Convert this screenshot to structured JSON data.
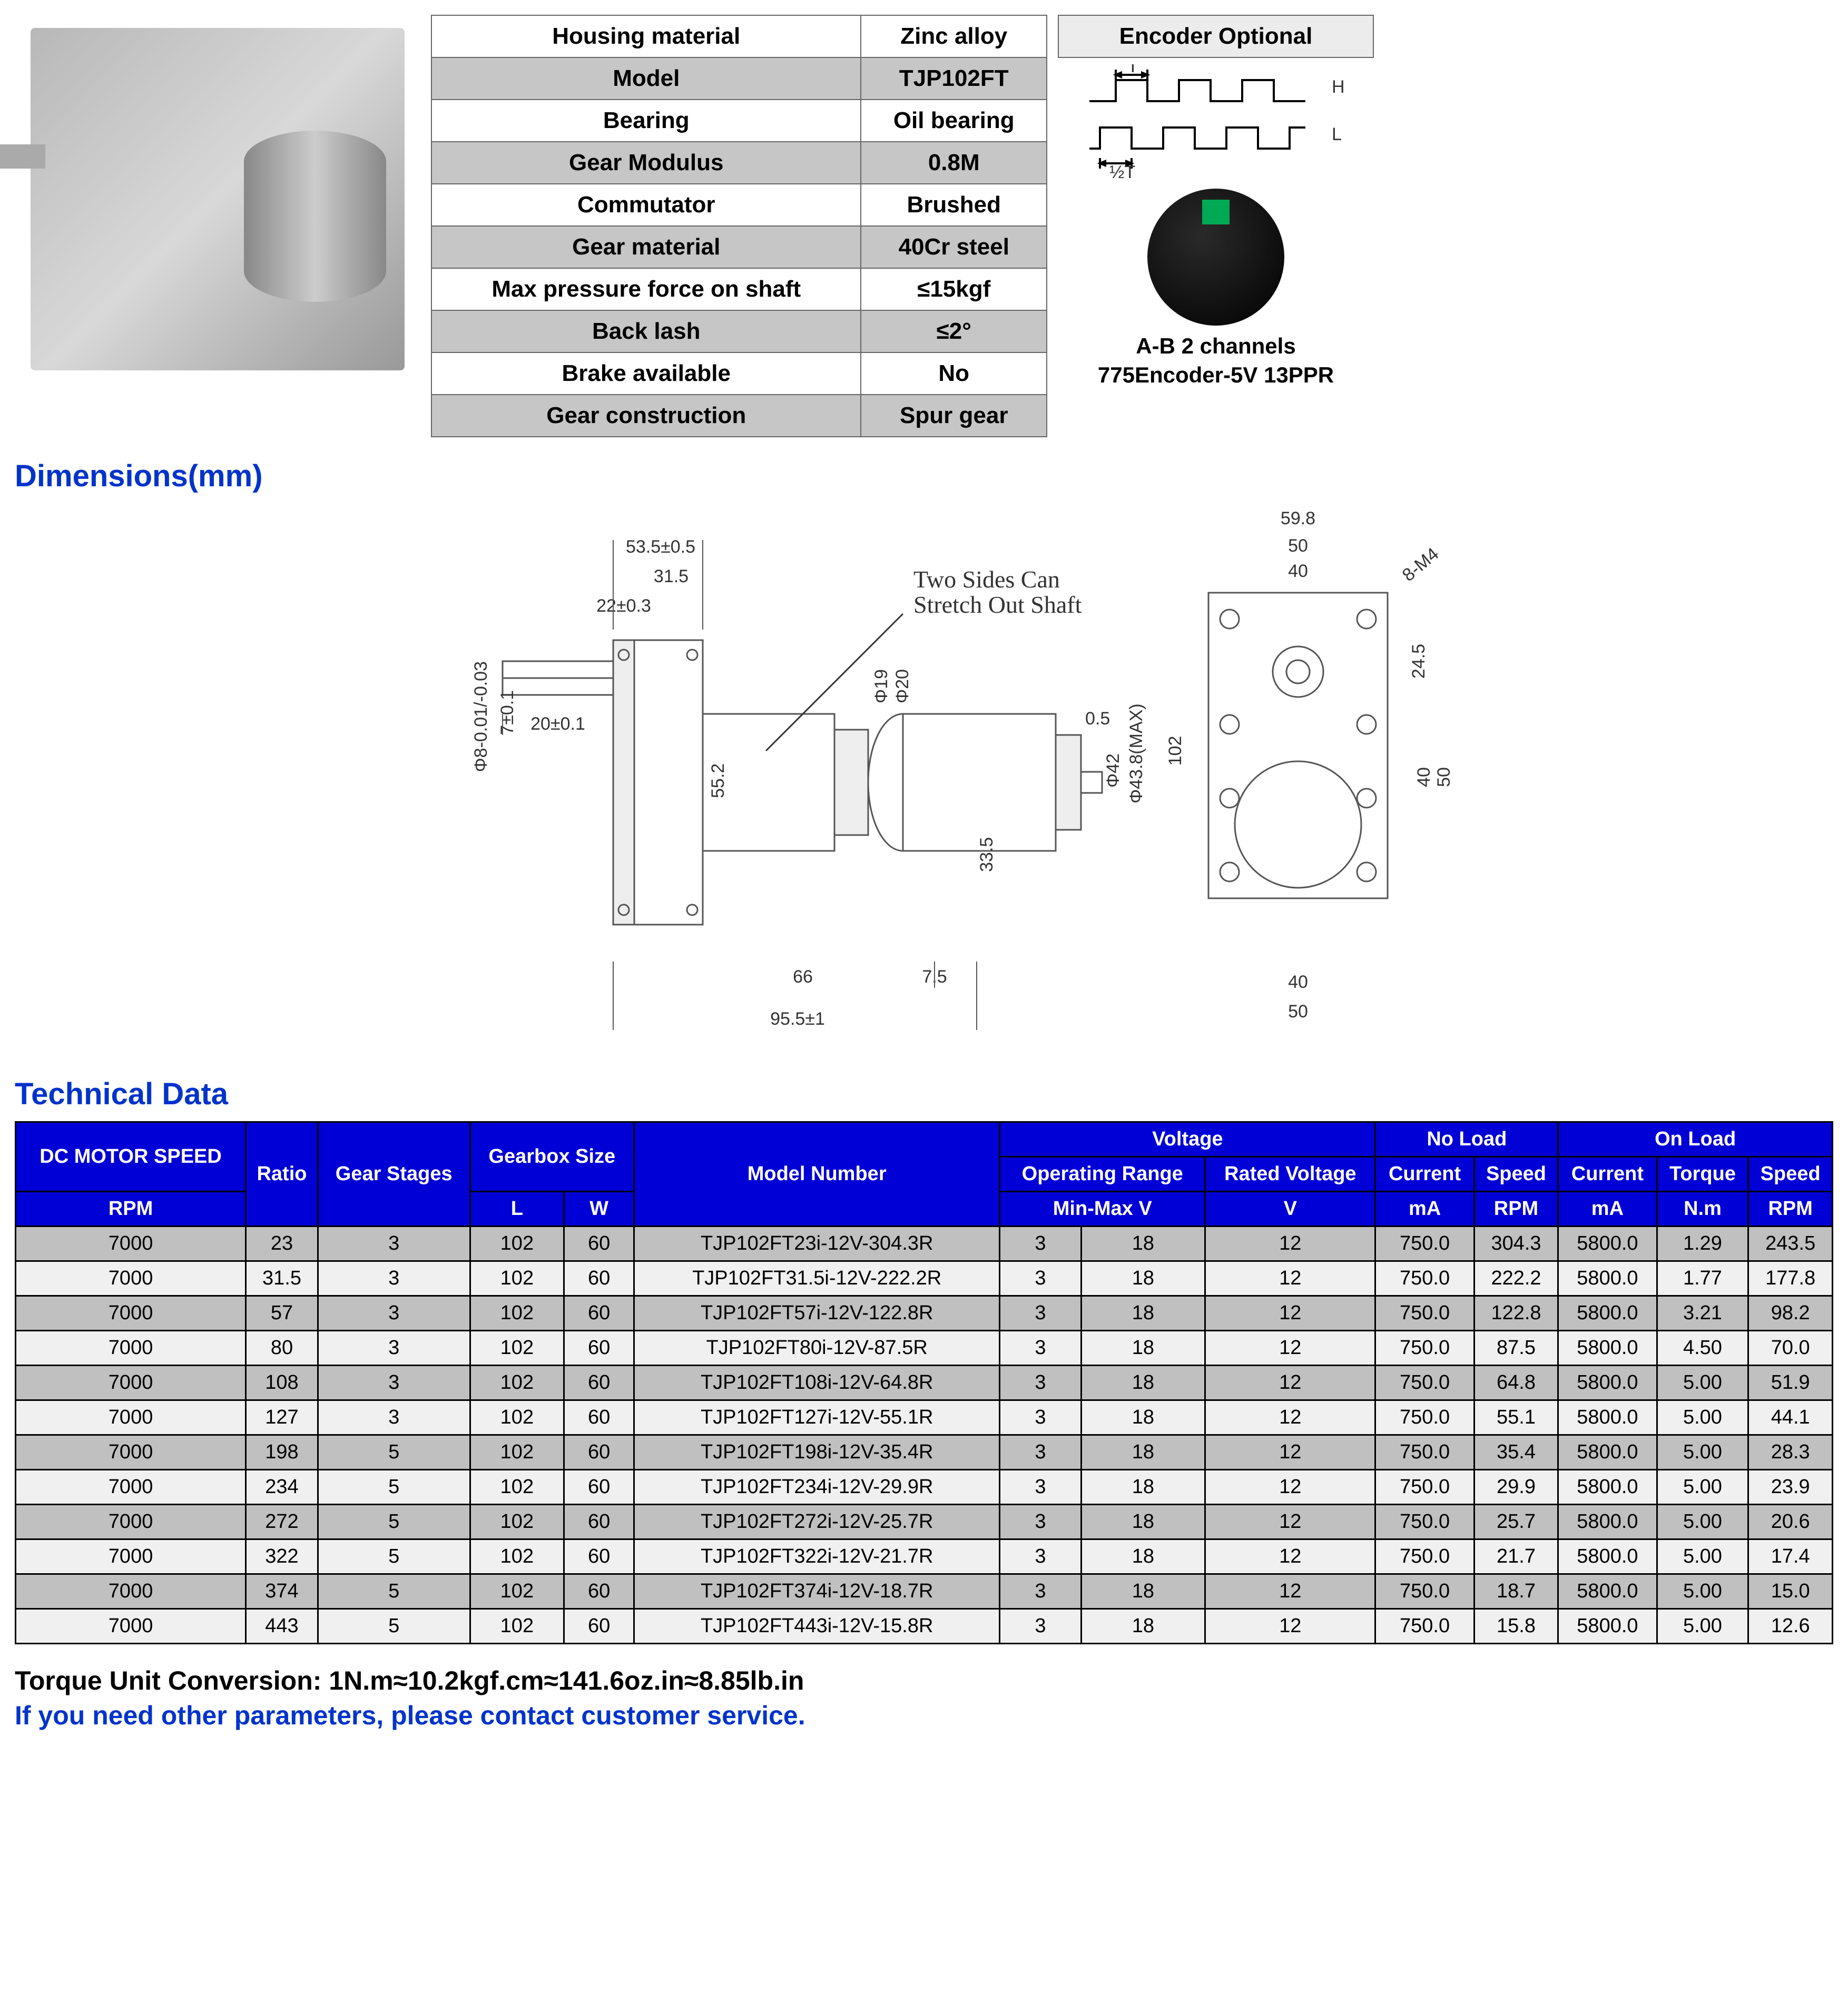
{
  "spec_labels": [
    "Housing material",
    "Model",
    "Bearing",
    "Gear Modulus",
    "Commutator",
    "Gear material",
    "Max pressure force on shaft",
    "Back lash",
    "Brake available",
    "Gear construction"
  ],
  "spec_values": [
    "Zinc alloy",
    "TJP102FT",
    "Oil bearing",
    "0.8M",
    "Brushed",
    "40Cr steel",
    "≤15kgf",
    "≤2°",
    "No",
    "Spur gear"
  ],
  "encoder": {
    "title": "Encoder Optional",
    "caption1": "A-B 2 channels",
    "caption2": "775Encoder-5V 13PPR",
    "labels": {
      "T": "T",
      "H": "H",
      "L": "L",
      "halfT": "½T"
    }
  },
  "h_dims": "Dimensions(mm)",
  "h_tech": "Technical Data",
  "dims_callout": "Two Sides Can\nStretch Out Shaft",
  "dims_values": {
    "w_top": "53.5±0.5",
    "w_315": "31.5",
    "w_22": "22±0.3",
    "w_20": "20±0.1",
    "w_66": "66",
    "w_955": "95.5±1",
    "w_75": "7.5",
    "h_552": "55.2",
    "h_335": "33.5",
    "h_05": "0.5",
    "d_phi42": "Φ42",
    "d_phi438": "Φ43.8(MAX)",
    "d_phi19": "Φ19",
    "d_phi20": "Φ20",
    "shaft_d": "Φ8-0.01/-0.03",
    "shaft_flat": "7±0.1",
    "r_598": "59.8",
    "r_50": "50",
    "r_40": "40",
    "r_102": "102",
    "r_245": "24.5",
    "r_50v": "50",
    "r_40v": "40",
    "r_m4": "8-M4"
  },
  "tech_headers": {
    "g1": [
      "DC MOTOR SPEED",
      "Ratio",
      "Gear Stages",
      "Gearbox Size",
      "Model Number",
      "Voltage",
      "No Load",
      "On Load"
    ],
    "g2": [
      "Operating Range",
      "Rated Voltage",
      "Current",
      "Speed",
      "Current",
      "Torque",
      "Speed"
    ],
    "g3": [
      "RPM",
      "",
      "",
      "L",
      "W",
      "",
      "Min-Max V",
      "V",
      "mA",
      "RPM",
      "mA",
      "N.m",
      "RPM"
    ]
  },
  "tech_rows": [
    [
      "7000",
      "23",
      "3",
      "102",
      "60",
      "TJP102FT23i-12V-304.3R",
      "3",
      "18",
      "12",
      "750.0",
      "304.3",
      "5800.0",
      "1.29",
      "243.5"
    ],
    [
      "7000",
      "31.5",
      "3",
      "102",
      "60",
      "TJP102FT31.5i-12V-222.2R",
      "3",
      "18",
      "12",
      "750.0",
      "222.2",
      "5800.0",
      "1.77",
      "177.8"
    ],
    [
      "7000",
      "57",
      "3",
      "102",
      "60",
      "TJP102FT57i-12V-122.8R",
      "3",
      "18",
      "12",
      "750.0",
      "122.8",
      "5800.0",
      "3.21",
      "98.2"
    ],
    [
      "7000",
      "80",
      "3",
      "102",
      "60",
      "TJP102FT80i-12V-87.5R",
      "3",
      "18",
      "12",
      "750.0",
      "87.5",
      "5800.0",
      "4.50",
      "70.0"
    ],
    [
      "7000",
      "108",
      "3",
      "102",
      "60",
      "TJP102FT108i-12V-64.8R",
      "3",
      "18",
      "12",
      "750.0",
      "64.8",
      "5800.0",
      "5.00",
      "51.9"
    ],
    [
      "7000",
      "127",
      "3",
      "102",
      "60",
      "TJP102FT127i-12V-55.1R",
      "3",
      "18",
      "12",
      "750.0",
      "55.1",
      "5800.0",
      "5.00",
      "44.1"
    ],
    [
      "7000",
      "198",
      "5",
      "102",
      "60",
      "TJP102FT198i-12V-35.4R",
      "3",
      "18",
      "12",
      "750.0",
      "35.4",
      "5800.0",
      "5.00",
      "28.3"
    ],
    [
      "7000",
      "234",
      "5",
      "102",
      "60",
      "TJP102FT234i-12V-29.9R",
      "3",
      "18",
      "12",
      "750.0",
      "29.9",
      "5800.0",
      "5.00",
      "23.9"
    ],
    [
      "7000",
      "272",
      "5",
      "102",
      "60",
      "TJP102FT272i-12V-25.7R",
      "3",
      "18",
      "12",
      "750.0",
      "25.7",
      "5800.0",
      "5.00",
      "20.6"
    ],
    [
      "7000",
      "322",
      "5",
      "102",
      "60",
      "TJP102FT322i-12V-21.7R",
      "3",
      "18",
      "12",
      "750.0",
      "21.7",
      "5800.0",
      "5.00",
      "17.4"
    ],
    [
      "7000",
      "374",
      "5",
      "102",
      "60",
      "TJP102FT374i-12V-18.7R",
      "3",
      "18",
      "12",
      "750.0",
      "18.7",
      "5800.0",
      "5.00",
      "15.0"
    ],
    [
      "7000",
      "443",
      "5",
      "102",
      "60",
      "TJP102FT443i-12V-15.8R",
      "3",
      "18",
      "12",
      "750.0",
      "15.8",
      "5800.0",
      "5.00",
      "12.6"
    ]
  ],
  "footer": {
    "line1": "Torque Unit Conversion: 1N.m≈10.2kgf.cm≈141.6oz.in≈8.85lb.in",
    "line2": "If you need other parameters, please contact customer service."
  },
  "colors": {
    "blue": "#0000d6",
    "heading": "#0033cc",
    "hdrRow": "#c6c6c6",
    "rowD": "#c0c0c0",
    "rowL": "#f0f0f0"
  }
}
